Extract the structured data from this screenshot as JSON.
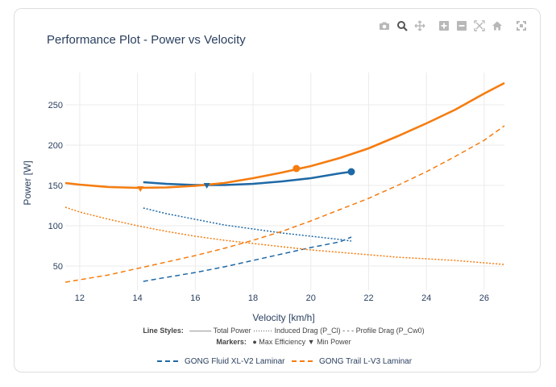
{
  "toolbar": {
    "icons": [
      "camera-icon",
      "zoom-icon",
      "pan-icon",
      "zoom-in-icon",
      "zoom-out-icon",
      "autoscale-icon",
      "home-icon",
      "fullscreen-icon"
    ]
  },
  "colors": {
    "blue": "#1f69a6",
    "orange": "#f57c0f",
    "grid": "#ebebeb",
    "text": "#2a3f5f"
  },
  "chart_data": {
    "type": "line",
    "title": "Performance Plot - Power vs Velocity",
    "xlabel": "Velocity [km/h]",
    "ylabel": "Power [W]",
    "xlim": [
      11.5,
      26.7
    ],
    "ylim": [
      20,
      290
    ],
    "xticks": [
      12,
      14,
      16,
      18,
      20,
      22,
      24,
      26
    ],
    "yticks": [
      50,
      100,
      150,
      200,
      250
    ],
    "annotations": {
      "line_styles_label": "Line Styles:",
      "line_styles_text": "——— Total Power  ········ Induced Drag (P_Cl)  - - - Profile Drag (P_Cw0)",
      "markers_label": "Markers:",
      "markers_text": "● Max Efficiency  ▼ Min Power"
    },
    "legend": [
      {
        "name": "GONG Fluid XL-V2 Laminar",
        "color": "#1f69a6"
      },
      {
        "name": "GONG Trail L-V3 Laminar",
        "color": "#f57c0f"
      }
    ],
    "series": [
      {
        "name": "GONG Fluid XL-V2 Laminar",
        "color": "#1f69a6",
        "total_power": {
          "x": [
            14.2,
            15,
            16,
            17,
            18,
            19,
            20,
            21,
            21.4
          ],
          "y": [
            154,
            152,
            150.5,
            150.5,
            152,
            155,
            159,
            165,
            167
          ]
        },
        "induced_drag": {
          "x": [
            14.2,
            15,
            16,
            17,
            18,
            19,
            20,
            21,
            21.4
          ],
          "y": [
            122,
            115,
            108,
            101,
            96,
            91,
            87,
            83,
            81
          ]
        },
        "profile_drag": {
          "x": [
            14.2,
            15,
            16,
            17,
            18,
            19,
            20,
            21,
            21.4
          ],
          "y": [
            31,
            36,
            42,
            49,
            57,
            65,
            73,
            80,
            86
          ]
        },
        "max_efficiency": {
          "x": 21.4,
          "y": 167
        },
        "min_power": {
          "x": 16.4,
          "y": 150
        }
      },
      {
        "name": "GONG Trail L-V3 Laminar",
        "color": "#f57c0f",
        "total_power": {
          "x": [
            11.5,
            12,
            13,
            14,
            15,
            16,
            17,
            18,
            19,
            20,
            21,
            22,
            23,
            24,
            25,
            26,
            26.7
          ],
          "y": [
            153,
            151,
            148,
            147,
            147.5,
            149.5,
            153,
            159,
            166,
            174,
            184,
            196,
            211,
            227,
            244,
            264,
            277
          ]
        },
        "induced_drag": {
          "x": [
            11.5,
            12,
            13,
            14,
            15,
            16,
            17,
            18,
            19,
            20,
            21,
            22,
            23,
            24,
            25,
            26,
            26.7
          ],
          "y": [
            123,
            117,
            108,
            100,
            93,
            87,
            82,
            78,
            74,
            70,
            67,
            64,
            61,
            59,
            57,
            54,
            52
          ]
        },
        "profile_drag": {
          "x": [
            11.5,
            12,
            13,
            14,
            15,
            16,
            17,
            18,
            19,
            20,
            21,
            22,
            23,
            24,
            25,
            26,
            26.7
          ],
          "y": [
            30,
            33,
            39,
            47,
            55,
            63,
            72,
            82,
            93,
            106,
            120,
            134,
            150,
            167,
            186,
            206,
            224
          ]
        },
        "max_efficiency": {
          "x": 19.5,
          "y": 171
        },
        "min_power": {
          "x": 14.1,
          "y": 146
        }
      }
    ]
  }
}
